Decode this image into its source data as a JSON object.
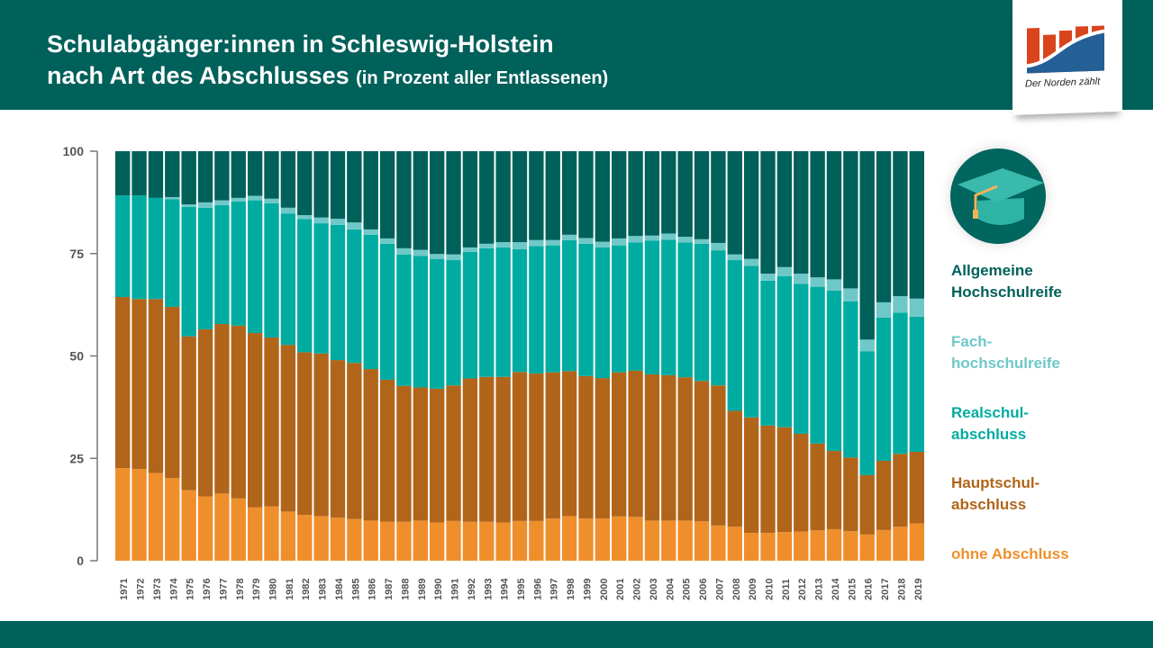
{
  "header": {
    "title_line1": "Schulabgänger:innen in Schleswig-Holstein",
    "title_line2": "nach Art des Abschlusses",
    "title_suffix": "(in Prozent aller Entlassenen)"
  },
  "logo": {
    "text": "Der Norden zählt"
  },
  "icons": {
    "legend_icon": "graduation-cap-icon"
  },
  "chart_data": {
    "type": "bar",
    "stacked": true,
    "title": "Schulabgänger:innen in Schleswig-Holstein nach Art des Abschlusses (in Prozent aller Entlassenen)",
    "ylim": [
      0,
      100
    ],
    "yticks": [
      "0",
      "25",
      "50",
      "75",
      "100"
    ],
    "legend_position": "right",
    "grid": false,
    "categories": [
      "1971",
      "1972",
      "1973",
      "1974",
      "1975",
      "1976",
      "1977",
      "1978",
      "1979",
      "1980",
      "1981",
      "1982",
      "1983",
      "1984",
      "1985",
      "1986",
      "1987",
      "1988",
      "1989",
      "1990",
      "1991",
      "1992",
      "1993",
      "1994",
      "1995",
      "1996",
      "1997",
      "1998",
      "1999",
      "2000",
      "2001",
      "2002",
      "2003",
      "2004",
      "2005",
      "2006",
      "2007",
      "2008",
      "2009",
      "2010",
      "2011",
      "2012",
      "2013",
      "2014",
      "2015",
      "2016",
      "2017",
      "2018",
      "2019"
    ],
    "series": [
      {
        "name": "ohne Abschluss",
        "color": "#ef8f2c",
        "values": [
          22.6,
          22.4,
          21.4,
          20.2,
          17.2,
          15.7,
          16.4,
          15.2,
          13.0,
          13.3,
          12.0,
          11.2,
          10.9,
          10.5,
          10.2,
          9.8,
          9.5,
          9.5,
          9.8,
          9.3,
          9.7,
          9.5,
          9.5,
          9.3,
          9.7,
          9.7,
          10.3,
          10.9,
          10.3,
          10.3,
          10.8,
          10.7,
          9.8,
          9.8,
          9.8,
          9.6,
          8.6,
          8.3,
          6.8,
          6.8,
          7.0,
          7.1,
          7.4,
          7.7,
          7.2,
          6.4,
          7.5,
          8.3,
          9.1
        ]
      },
      {
        "name": "Hauptschul-\nabschluss",
        "color": "#b1651a",
        "values": [
          41.8,
          41.5,
          42.5,
          41.8,
          37.6,
          40.8,
          41.4,
          42.2,
          42.6,
          41.2,
          40.7,
          39.7,
          39.7,
          38.5,
          38.1,
          37.0,
          34.7,
          33.2,
          32.5,
          32.7,
          33.1,
          35.0,
          35.4,
          35.6,
          36.4,
          36.0,
          35.7,
          35.4,
          34.8,
          34.3,
          35.2,
          35.7,
          35.7,
          35.5,
          35.0,
          34.3,
          34.2,
          28.3,
          28.2,
          26.2,
          25.6,
          23.9,
          21.2,
          19.1,
          18.0,
          14.5,
          16.9,
          17.8,
          17.5
        ]
      },
      {
        "name": "Realschul-\nabschluss",
        "color": "#00aca1",
        "values": [
          24.8,
          25.3,
          24.7,
          26.3,
          31.6,
          29.7,
          29.0,
          30.3,
          32.4,
          32.8,
          32.1,
          32.5,
          31.8,
          33.0,
          32.6,
          32.8,
          33.2,
          32.1,
          32.1,
          31.7,
          30.6,
          30.9,
          31.4,
          31.6,
          30.0,
          31.1,
          31.0,
          32.0,
          32.3,
          31.9,
          31.0,
          31.3,
          32.7,
          33.1,
          32.9,
          33.5,
          33.0,
          36.8,
          37.0,
          35.4,
          36.9,
          36.6,
          38.3,
          39.2,
          38.1,
          30.2,
          35.0,
          34.5,
          33.0
        ]
      },
      {
        "name": "Fach-\nhochschulreife",
        "color": "#6fc8c8",
        "values": [
          0.0,
          0.0,
          0.0,
          0.5,
          0.6,
          1.3,
          1.2,
          0.9,
          1.1,
          1.1,
          1.4,
          1.0,
          1.4,
          1.5,
          1.7,
          1.3,
          1.3,
          1.5,
          1.5,
          1.2,
          1.4,
          1.1,
          1.1,
          1.3,
          1.7,
          1.5,
          1.3,
          1.3,
          1.4,
          1.4,
          1.7,
          1.6,
          1.2,
          1.5,
          1.4,
          1.1,
          1.8,
          1.4,
          1.7,
          1.7,
          2.2,
          2.5,
          2.3,
          2.7,
          3.2,
          2.9,
          3.7,
          4.0,
          4.4
        ]
      },
      {
        "name": "Allgemeine\nHochschulreife",
        "color": "#00605a",
        "values": [
          10.8,
          10.8,
          11.4,
          11.2,
          13.0,
          12.5,
          12.0,
          11.4,
          10.9,
          11.6,
          13.8,
          15.6,
          16.2,
          16.5,
          17.4,
          19.1,
          21.3,
          23.7,
          24.1,
          25.1,
          25.2,
          23.5,
          22.6,
          22.2,
          22.2,
          21.7,
          21.7,
          20.4,
          21.2,
          22.1,
          21.3,
          20.7,
          20.6,
          20.1,
          20.9,
          21.5,
          22.4,
          25.2,
          26.3,
          29.9,
          28.3,
          29.9,
          30.8,
          31.3,
          33.5,
          46.0,
          36.9,
          35.4,
          36.0
        ]
      }
    ]
  }
}
